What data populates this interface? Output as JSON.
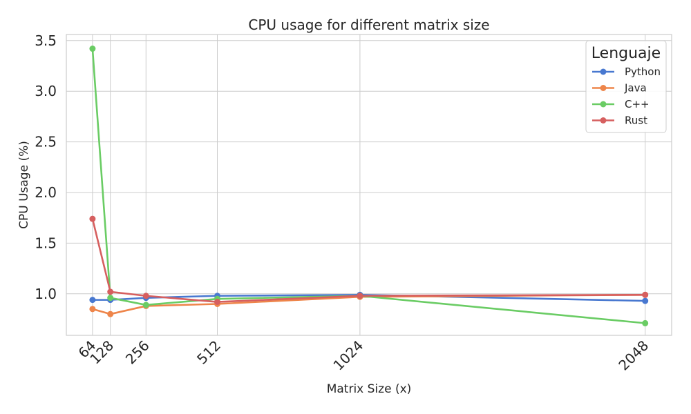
{
  "chart_data": {
    "type": "line",
    "title": "CPU usage for different matrix size",
    "xlabel": "Matrix Size (x)",
    "ylabel": "CPU Usage (%)",
    "x": [
      64,
      128,
      256,
      512,
      1024,
      2048
    ],
    "x_tick_labels": [
      "64",
      "128",
      "256",
      "512",
      "1024",
      "2048"
    ],
    "y_ticks": [
      1.0,
      1.5,
      2.0,
      2.5,
      3.0,
      3.5
    ],
    "y_tick_labels": [
      "1.0",
      "1.5",
      "2.0",
      "2.5",
      "3.0",
      "3.5"
    ],
    "xlim": [
      -30,
      2143
    ],
    "ylim": [
      0.59,
      3.56
    ],
    "grid": true,
    "legend": {
      "title": "Lenguaje",
      "placement": "top-right"
    },
    "series": [
      {
        "name": "Python",
        "color": "#4878d0",
        "values": [
          0.94,
          0.94,
          0.96,
          0.98,
          0.99,
          0.93
        ]
      },
      {
        "name": "Java",
        "color": "#ee854a",
        "values": [
          0.85,
          0.8,
          0.88,
          0.9,
          0.97,
          0.99
        ]
      },
      {
        "name": "C++",
        "color": "#6acc64",
        "values": [
          3.42,
          0.96,
          0.89,
          0.95,
          0.98,
          0.71
        ]
      },
      {
        "name": "Rust",
        "color": "#d65f5f",
        "values": [
          1.74,
          1.02,
          0.98,
          0.92,
          0.98,
          0.99
        ]
      }
    ]
  }
}
